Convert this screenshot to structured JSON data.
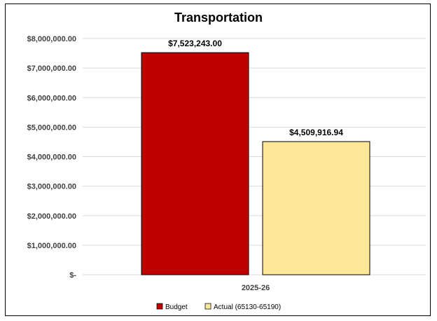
{
  "chart_data": {
    "type": "bar",
    "title": "Transportation",
    "categories": [
      "2025-26"
    ],
    "series": [
      {
        "name": "Budget",
        "values": [
          7523243.0
        ],
        "label": "$7,523,243.00",
        "color": "#c00000"
      },
      {
        "name": "Actual (65130-65190)",
        "values": [
          4509916.94
        ],
        "label": "$4,509,916.94",
        "color": "#ffe699"
      }
    ],
    "ylim": [
      0,
      8000000
    ],
    "y_ticks": [
      0,
      1000000,
      2000000,
      3000000,
      4000000,
      5000000,
      6000000,
      7000000,
      8000000
    ],
    "y_tick_labels": [
      "$-",
      "$1,000,000.00",
      "$2,000,000.00",
      "$3,000,000.00",
      "$4,000,000.00",
      "$5,000,000.00",
      "$6,000,000.00",
      "$7,000,000.00",
      "$8,000,000.00"
    ],
    "grid": true,
    "legend_position": "bottom"
  }
}
